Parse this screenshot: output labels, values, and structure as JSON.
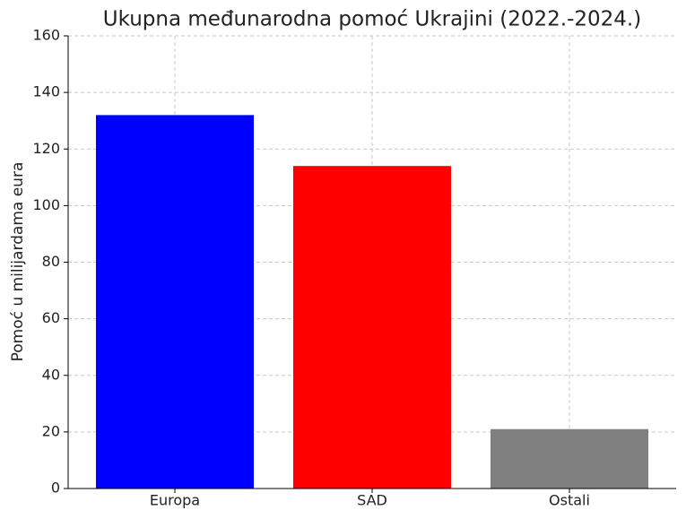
{
  "chart_data": {
    "type": "bar",
    "title": "Ukupna međunarodna pomoć Ukrajini (2022.-2024.)",
    "y_label": "Pomoć u milijardama eura",
    "categories": [
      "Europa",
      "SAD",
      "Ostali"
    ],
    "values": [
      132,
      114,
      21
    ],
    "colors": [
      "#0000ff",
      "#ff0000",
      "#808080"
    ],
    "ylim": [
      0,
      160
    ],
    "yticks": [
      0,
      20,
      40,
      60,
      80,
      100,
      120,
      140,
      160
    ],
    "grid": true
  }
}
